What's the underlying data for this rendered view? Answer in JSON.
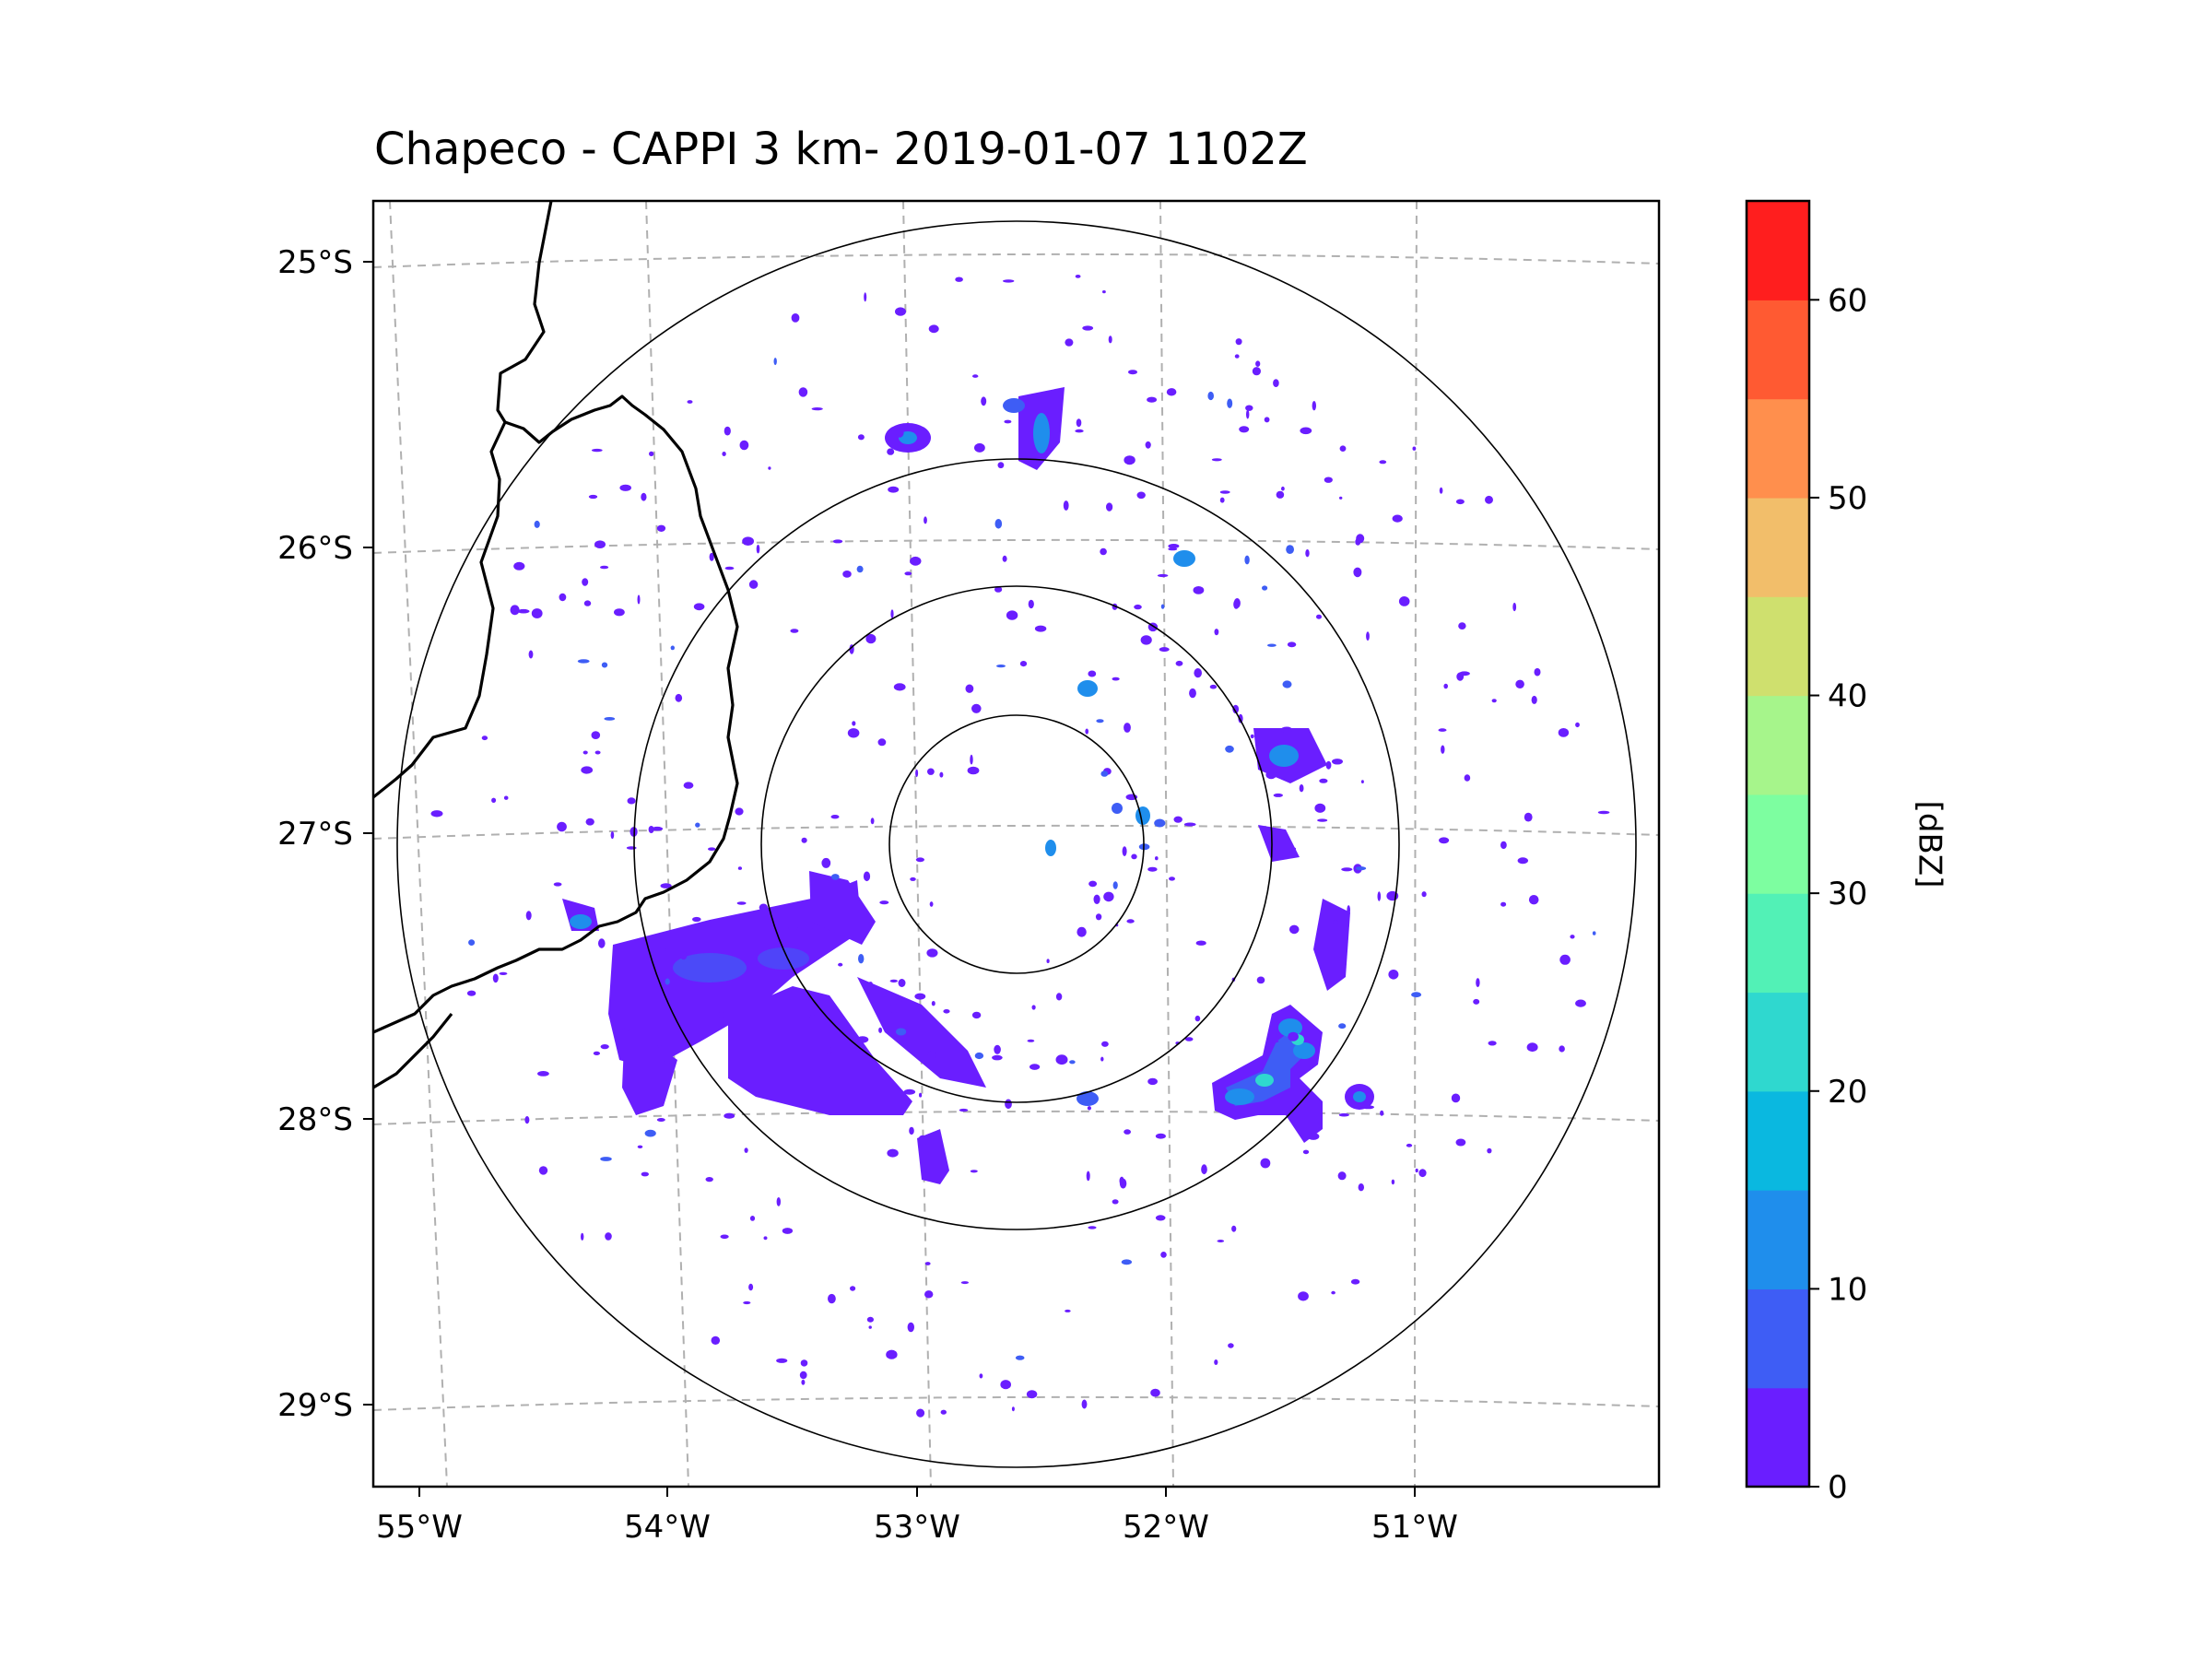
{
  "title": "Chapeco - CAPPI 3 km- 2019-01-07 1102Z",
  "map": {
    "lon_labels": [
      "55°W",
      "54°W",
      "53°W",
      "52°W",
      "51°W"
    ],
    "lat_labels": [
      "25°S",
      "26°S",
      "27°S",
      "28°S",
      "29°S"
    ]
  },
  "colorbar": {
    "label": "[dBZ]",
    "min": 0,
    "max": 65,
    "step": 5,
    "tick_values": [
      0,
      10,
      20,
      30,
      40,
      50,
      60
    ],
    "tick_labels": [
      "0",
      "10",
      "20",
      "30",
      "40",
      "50",
      "60"
    ],
    "colors": [
      "#6a1eff",
      "#3e5df5",
      "#1f8eec",
      "#0ab8e0",
      "#2fd8cf",
      "#52f1b6",
      "#7dfea0",
      "#a6f58b",
      "#cfe06e",
      "#f2be6a",
      "#ff8f4d",
      "#ff5a32",
      "#ff1e1e"
    ]
  },
  "colors": {
    "echo_weak": "#6a1eff",
    "echo_moderate": "#3e5df5",
    "echo_strong": "#1f8eec",
    "echo_peak": "#2fd8cf",
    "range_ring": "#000000",
    "gridline": "#b0b0b0",
    "border": "#000000"
  },
  "chart_data": {
    "type": "heatmap",
    "title": "Chapeco - CAPPI 3 km- 2019-01-07 1102Z",
    "xlabel": "",
    "ylabel": "",
    "x_ticks": [
      "55°W",
      "54°W",
      "53°W",
      "52°W",
      "51°W"
    ],
    "y_ticks": [
      "25°S",
      "26°S",
      "27°S",
      "28°S",
      "29°S"
    ],
    "radar_center_approx": {
      "lon": -52.6,
      "lat": -27.03
    },
    "range_rings": 4,
    "colorbar": {
      "label": "[dBZ]",
      "range": [
        0,
        65
      ],
      "ticks": [
        0,
        10,
        20,
        30,
        40,
        50,
        60
      ]
    },
    "reflectivity_summary": "mostly 0-5 dBZ echoes, strongest cells about 10-25 dBZ in the southwest and southeast",
    "echo_regions": [
      {
        "name": "SW band",
        "dbz_max": 10
      },
      {
        "name": "SE cluster",
        "dbz_max": 25
      },
      {
        "name": "N cells",
        "dbz_max": 15
      },
      {
        "name": "scattered",
        "dbz_max": 5
      }
    ]
  }
}
